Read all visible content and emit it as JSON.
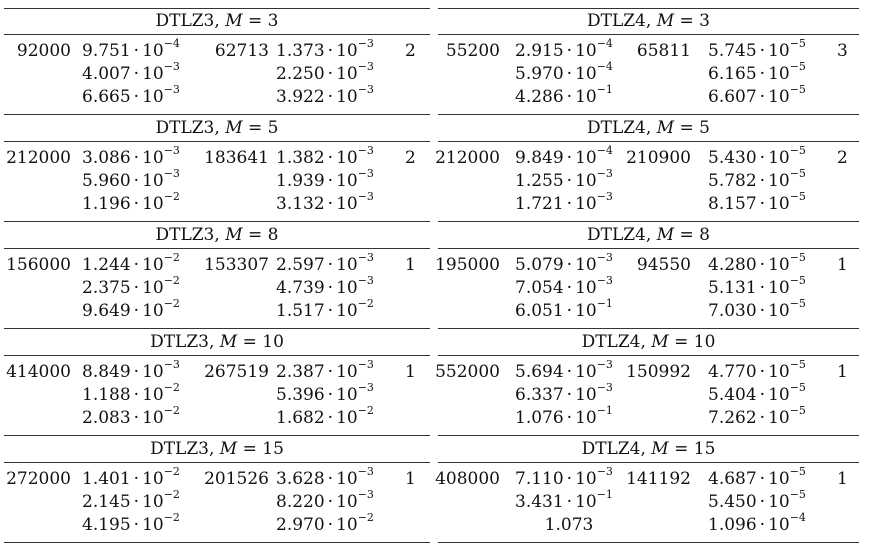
{
  "left": [
    {
      "problem": "DTLZ3",
      "m": "3",
      "n1": "92000",
      "a": [
        {
          "m": "9.751",
          "e": "−4"
        },
        {
          "m": "4.007",
          "e": "−3"
        },
        {
          "m": "6.665",
          "e": "−3"
        }
      ],
      "n2": "62713",
      "b": [
        {
          "m": "1.373",
          "e": "−3"
        },
        {
          "m": "2.250",
          "e": "−3"
        },
        {
          "m": "3.922",
          "e": "−3"
        }
      ],
      "k": "2"
    },
    {
      "problem": "DTLZ3",
      "m": "5",
      "n1": "212000",
      "a": [
        {
          "m": "3.086",
          "e": "−3"
        },
        {
          "m": "5.960",
          "e": "−3"
        },
        {
          "m": "1.196",
          "e": "−2"
        }
      ],
      "n2": "183641",
      "b": [
        {
          "m": "1.382",
          "e": "−3"
        },
        {
          "m": "1.939",
          "e": "−3"
        },
        {
          "m": "3.132",
          "e": "−3"
        }
      ],
      "k": "2"
    },
    {
      "problem": "DTLZ3",
      "m": "8",
      "n1": "156000",
      "a": [
        {
          "m": "1.244",
          "e": "−2"
        },
        {
          "m": "2.375",
          "e": "−2"
        },
        {
          "m": "9.649",
          "e": "−2"
        }
      ],
      "n2": "153307",
      "b": [
        {
          "m": "2.597",
          "e": "−3"
        },
        {
          "m": "4.739",
          "e": "−3"
        },
        {
          "m": "1.517",
          "e": "−2"
        }
      ],
      "k": "1"
    },
    {
      "problem": "DTLZ3",
      "m": "10",
      "n1": "414000",
      "a": [
        {
          "m": "8.849",
          "e": "−3"
        },
        {
          "m": "1.188",
          "e": "−2"
        },
        {
          "m": "2.083",
          "e": "−2"
        }
      ],
      "n2": "267519",
      "b": [
        {
          "m": "2.387",
          "e": "−3"
        },
        {
          "m": "5.396",
          "e": "−3"
        },
        {
          "m": "1.682",
          "e": "−2"
        }
      ],
      "k": "1"
    },
    {
      "problem": "DTLZ3",
      "m": "15",
      "n1": "272000",
      "a": [
        {
          "m": "1.401",
          "e": "−2"
        },
        {
          "m": "2.145",
          "e": "−2"
        },
        {
          "m": "4.195",
          "e": "−2"
        }
      ],
      "n2": "201526",
      "b": [
        {
          "m": "3.628",
          "e": "−3"
        },
        {
          "m": "8.220",
          "e": "−3"
        },
        {
          "m": "2.970",
          "e": "−2"
        }
      ],
      "k": "1"
    }
  ],
  "right": [
    {
      "problem": "DTLZ4",
      "m": "3",
      "n1": "55200",
      "a": [
        {
          "m": "2.915",
          "e": "−4"
        },
        {
          "m": "5.970",
          "e": "−4"
        },
        {
          "m": "4.286",
          "e": "−1"
        }
      ],
      "n2": "65811",
      "b": [
        {
          "m": "5.745",
          "e": "−5"
        },
        {
          "m": "6.165",
          "e": "−5"
        },
        {
          "m": "6.607",
          "e": "−5"
        }
      ],
      "k": "3"
    },
    {
      "problem": "DTLZ4",
      "m": "5",
      "n1": "212000",
      "a": [
        {
          "m": "9.849",
          "e": "−4"
        },
        {
          "m": "1.255",
          "e": "−3"
        },
        {
          "m": "1.721",
          "e": "−3"
        }
      ],
      "n2": "210900",
      "b": [
        {
          "m": "5.430",
          "e": "−5"
        },
        {
          "m": "5.782",
          "e": "−5"
        },
        {
          "m": "8.157",
          "e": "−5"
        }
      ],
      "k": "2"
    },
    {
      "problem": "DTLZ4",
      "m": "8",
      "n1": "195000",
      "a": [
        {
          "m": "5.079",
          "e": "−3"
        },
        {
          "m": "7.054",
          "e": "−3"
        },
        {
          "m": "6.051",
          "e": "−1"
        }
      ],
      "n2": "94550",
      "b": [
        {
          "m": "4.280",
          "e": "−5"
        },
        {
          "m": "5.131",
          "e": "−5"
        },
        {
          "m": "7.030",
          "e": "−5"
        }
      ],
      "k": "1"
    },
    {
      "problem": "DTLZ4",
      "m": "10",
      "n1": "552000",
      "a": [
        {
          "m": "5.694",
          "e": "−3"
        },
        {
          "m": "6.337",
          "e": "−3"
        },
        {
          "m": "1.076",
          "e": "−1"
        }
      ],
      "n2": "150992",
      "b": [
        {
          "m": "4.770",
          "e": "−5"
        },
        {
          "m": "5.404",
          "e": "−5"
        },
        {
          "m": "7.262",
          "e": "−5"
        }
      ],
      "k": "1"
    },
    {
      "problem": "DTLZ4",
      "m": "15",
      "n1": "408000",
      "a": [
        {
          "m": "7.110",
          "e": "−3"
        },
        {
          "m": "3.431",
          "e": "−1"
        },
        {
          "m": "1.073",
          "e": ""
        }
      ],
      "n2": "141192",
      "b": [
        {
          "m": "4.687",
          "e": "−5"
        },
        {
          "m": "5.450",
          "e": "−5"
        },
        {
          "m": "1.096",
          "e": "−4"
        }
      ],
      "k": "1"
    }
  ]
}
